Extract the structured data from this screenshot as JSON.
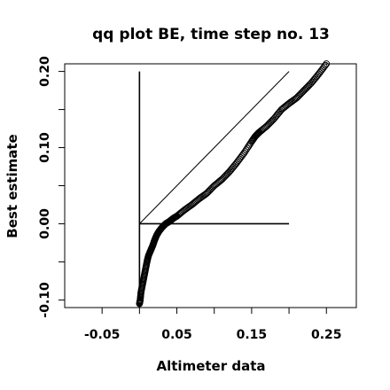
{
  "chart_data": {
    "type": "scatter",
    "title": "qq plot BE, time step no. 13",
    "xlabel": "Altimeter data",
    "ylabel": "Best estimate",
    "xlim": [
      -0.1,
      0.29
    ],
    "ylim": [
      -0.11,
      0.21
    ],
    "x_ticks": [
      -0.05,
      0.0,
      0.05,
      0.1,
      0.15,
      0.2,
      0.25
    ],
    "x_tick_labels": [
      "-0.05",
      "",
      "0.05",
      "",
      "0.15",
      "",
      "0.25"
    ],
    "y_ticks": [
      -0.1,
      -0.05,
      0.0,
      0.05,
      0.1,
      0.15,
      0.2
    ],
    "y_tick_labels": [
      "-0.10",
      "",
      "0.00",
      "",
      "0.10",
      "",
      "0.20"
    ],
    "grid": false,
    "legend": "none",
    "marker": "open-circle",
    "reference_lines": [
      {
        "name": "identity",
        "x": [
          0.0,
          0.2
        ],
        "y": [
          0.0,
          0.2
        ]
      },
      {
        "name": "vertical-zero",
        "x": [
          0.0,
          0.0
        ],
        "y": [
          -0.1,
          0.2
        ]
      },
      {
        "name": "horizontal-zero",
        "x": [
          0.0,
          0.2
        ],
        "y": [
          0.0,
          0.0
        ]
      }
    ],
    "curve": {
      "x": [
        0.0,
        0.001,
        0.002,
        0.004,
        0.006,
        0.008,
        0.01,
        0.012,
        0.015,
        0.018,
        0.02,
        0.023,
        0.026,
        0.03,
        0.035,
        0.04,
        0.045,
        0.05,
        0.06,
        0.07,
        0.08,
        0.09,
        0.1,
        0.11,
        0.12,
        0.13,
        0.14,
        0.15,
        0.155,
        0.16,
        0.17,
        0.18,
        0.19,
        0.2,
        0.21,
        0.22,
        0.23,
        0.24,
        0.25
      ],
      "y": [
        -0.105,
        -0.1,
        -0.09,
        -0.08,
        -0.07,
        -0.06,
        -0.05,
        -0.042,
        -0.035,
        -0.028,
        -0.022,
        -0.015,
        -0.01,
        -0.005,
        0.0,
        0.003,
        0.007,
        0.01,
        0.018,
        0.025,
        0.033,
        0.04,
        0.05,
        0.058,
        0.068,
        0.08,
        0.093,
        0.108,
        0.115,
        0.12,
        0.128,
        0.138,
        0.15,
        0.158,
        0.165,
        0.175,
        0.185,
        0.197,
        0.21
      ],
      "n_points": 260
    }
  }
}
